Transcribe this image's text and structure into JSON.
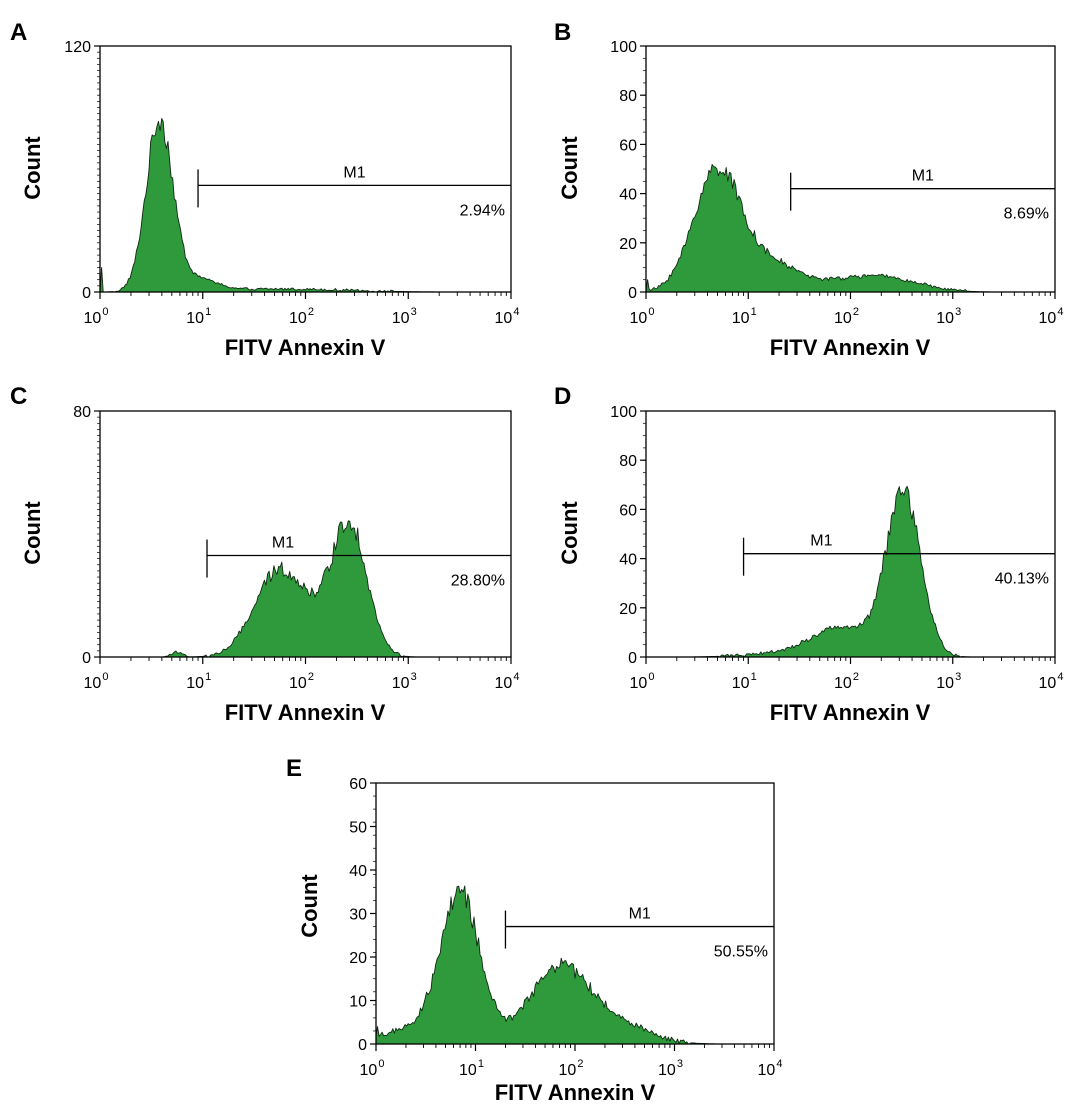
{
  "figure": {
    "fill_color": "#2e9a3c",
    "outline_color": "#102a14",
    "marker_name": "M1"
  },
  "chart_data": [
    {
      "type": "histogram",
      "panel": "A",
      "xlabel": "FITV Annexin V",
      "ylabel": "Count",
      "x_scale": "log",
      "xlim": [
        1,
        10000
      ],
      "x_ticks": [
        "10",
        "10",
        "10",
        "10",
        "10"
      ],
      "x_tick_exponents": [
        "0",
        "1",
        "2",
        "3",
        "4"
      ],
      "ylim": [
        0,
        120
      ],
      "y_ticks": [
        0,
        120
      ],
      "marker": {
        "label": "M1",
        "percent": "2.94%",
        "start": 9,
        "end": 10000,
        "level": 52
      },
      "peaks": [
        {
          "center": 3.8,
          "width": 0.13,
          "height": 84
        },
        {
          "center": 9,
          "width": 0.18,
          "height": 6
        },
        {
          "center": 60,
          "width": 0.6,
          "height": 1.5
        }
      ],
      "edge_spike": 12
    },
    {
      "type": "histogram",
      "panel": "B",
      "xlabel": "FITV Annexin V",
      "ylabel": "Count",
      "x_scale": "log",
      "xlim": [
        1,
        10000
      ],
      "x_ticks": [
        "10",
        "10",
        "10",
        "10",
        "10"
      ],
      "x_tick_exponents": [
        "0",
        "1",
        "2",
        "3",
        "4"
      ],
      "ylim": [
        0,
        100
      ],
      "y_ticks": [
        0,
        20,
        40,
        60,
        80,
        100
      ],
      "marker": {
        "label": "M1",
        "percent": "8.69%",
        "start": 26,
        "end": 10000,
        "level": 42
      },
      "peaks": [
        {
          "center": 5,
          "width": 0.23,
          "height": 50
        },
        {
          "center": 17,
          "width": 0.25,
          "height": 10
        },
        {
          "center": 200,
          "width": 0.35,
          "height": 6
        },
        {
          "center": 50,
          "width": 0.35,
          "height": 2.5
        }
      ],
      "edge_spike": 5
    },
    {
      "type": "histogram",
      "panel": "C",
      "xlabel": "FITV Annexin V",
      "ylabel": "Count",
      "x_scale": "log",
      "xlim": [
        1,
        10000
      ],
      "x_ticks": [
        "10",
        "10",
        "10",
        "10",
        "10"
      ],
      "x_tick_exponents": [
        "0",
        "1",
        "2",
        "3",
        "4"
      ],
      "ylim": [
        0,
        80
      ],
      "y_ticks": [
        0,
        80
      ],
      "marker": {
        "label": "M1",
        "percent": "28.80%",
        "start": 11,
        "end": 10000,
        "level": 33
      },
      "peaks": [
        {
          "center": 55,
          "width": 0.24,
          "height": 27
        },
        {
          "center": 270,
          "width": 0.17,
          "height": 40
        },
        {
          "center": 150,
          "width": 0.25,
          "height": 7
        },
        {
          "center": 5.5,
          "width": 0.05,
          "height": 1.5
        }
      ],
      "edge_spike": 0
    },
    {
      "type": "histogram",
      "panel": "D",
      "xlabel": "FITV Annexin V",
      "ylabel": "Count",
      "x_scale": "log",
      "xlim": [
        1,
        10000
      ],
      "x_ticks": [
        "10",
        "10",
        "10",
        "10",
        "10"
      ],
      "x_tick_exponents": [
        "0",
        "1",
        "2",
        "3",
        "4"
      ],
      "ylim": [
        0,
        100
      ],
      "y_ticks": [
        0,
        20,
        40,
        60,
        80,
        100
      ],
      "marker": {
        "label": "M1",
        "percent": "40.13%",
        "start": 9,
        "end": 10000,
        "level": 42
      },
      "peaks": [
        {
          "center": 330,
          "width": 0.17,
          "height": 66
        },
        {
          "center": 80,
          "width": 0.3,
          "height": 12
        },
        {
          "center": 15,
          "width": 0.3,
          "height": 1
        }
      ],
      "edge_spike": 0
    },
    {
      "type": "histogram",
      "panel": "E",
      "xlabel": "FITV Annexin V",
      "ylabel": "Count",
      "x_scale": "log",
      "xlim": [
        1,
        10000
      ],
      "x_ticks": [
        "10",
        "10",
        "10",
        "10",
        "10"
      ],
      "x_tick_exponents": [
        "0",
        "1",
        "2",
        "3",
        "4"
      ],
      "ylim": [
        0,
        60
      ],
      "y_ticks": [
        0,
        10,
        20,
        30,
        40,
        50,
        60
      ],
      "marker": {
        "label": "M1",
        "percent": "50.55%",
        "start": 20,
        "end": 10000,
        "level": 27
      },
      "peaks": [
        {
          "center": 7,
          "width": 0.2,
          "height": 34
        },
        {
          "center": 70,
          "width": 0.3,
          "height": 18
        },
        {
          "center": 2,
          "width": 0.3,
          "height": 3
        },
        {
          "center": 300,
          "width": 0.3,
          "height": 4
        }
      ],
      "edge_spike": 4
    }
  ]
}
